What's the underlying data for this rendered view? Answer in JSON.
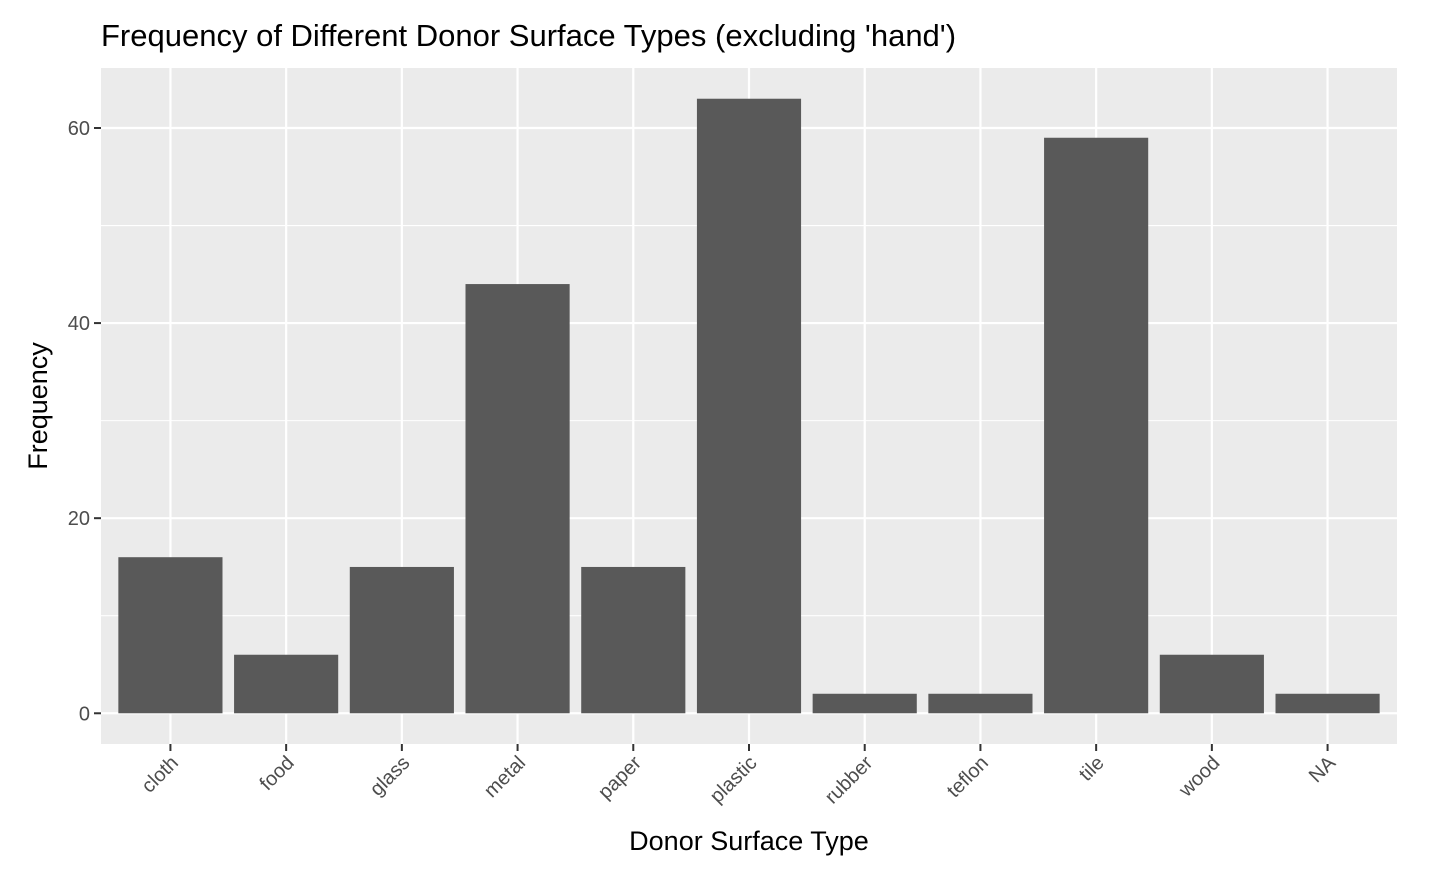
{
  "chart_data": {
    "type": "bar",
    "title": "Frequency of Different Donor Surface Types (excluding 'hand')",
    "xlabel": "Donor Surface Type",
    "ylabel": "Frequency",
    "categories": [
      "cloth",
      "food",
      "glass",
      "metal",
      "paper",
      "plastic",
      "rubber",
      "teflon",
      "tile",
      "wood",
      "NA"
    ],
    "values": [
      16,
      6,
      15,
      44,
      15,
      63,
      2,
      2,
      59,
      6,
      2
    ],
    "ylim": [
      -3.15,
      66.15
    ],
    "yticks": [
      0,
      20,
      40,
      60
    ],
    "grid": true,
    "colors": {
      "panel_background": "#ebebeb",
      "grid": "#ffffff",
      "bar": "#595959",
      "tick_text": "#4d4d4d",
      "text": "#000000"
    }
  }
}
